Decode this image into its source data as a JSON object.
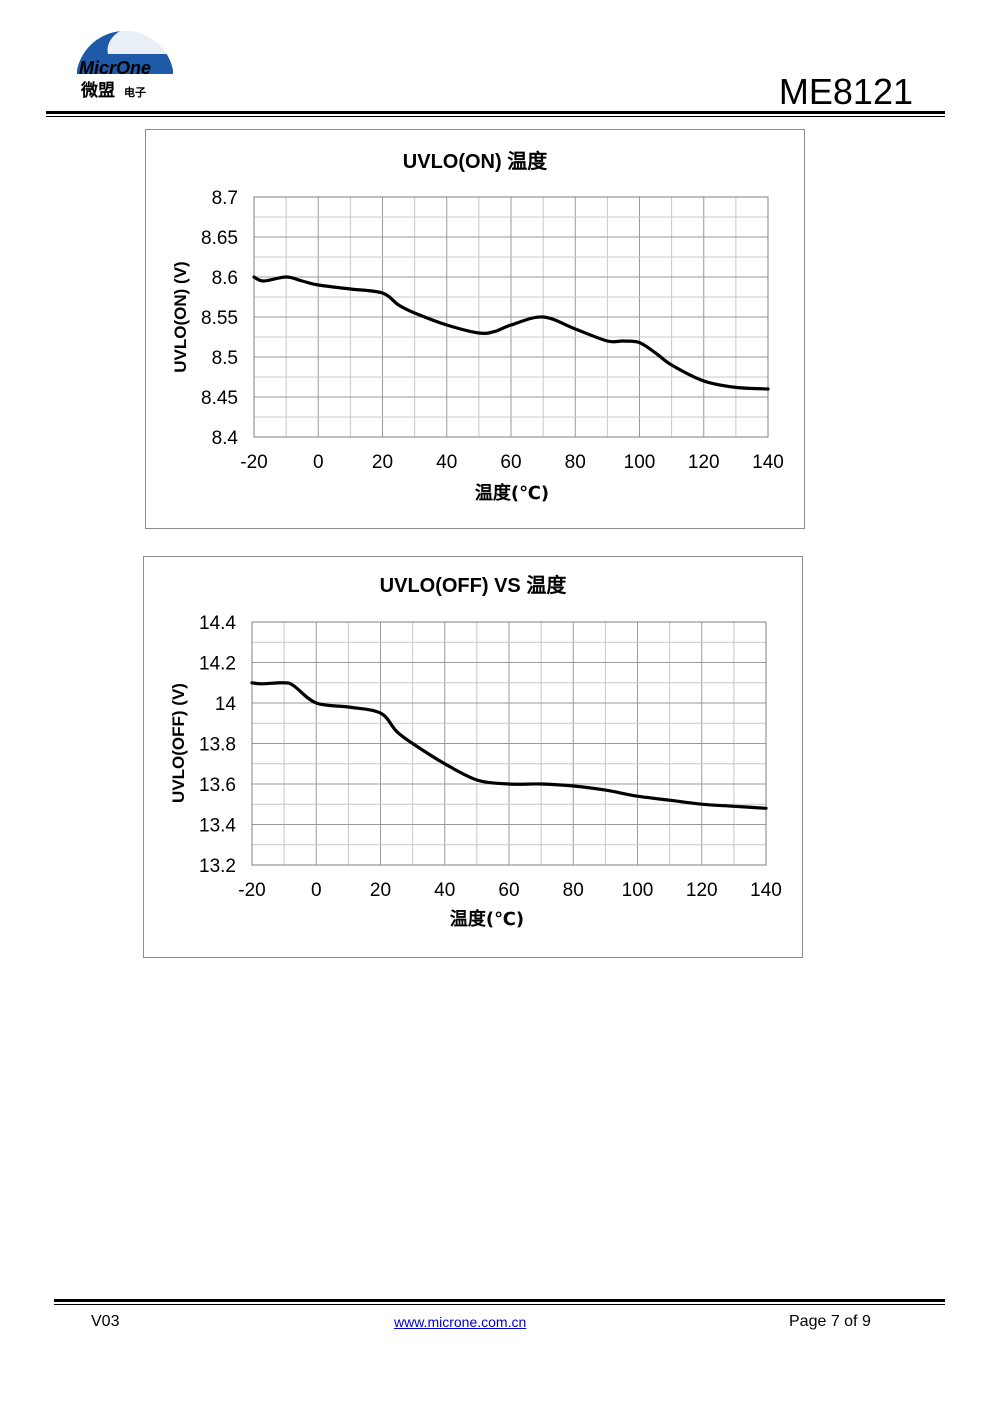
{
  "header": {
    "logo_text": "MicrOne",
    "logo_cn": "微盟",
    "logo_cn_small": "电子",
    "doc_id": "ME8121",
    "colors": {
      "logo_blue": "#1e5aa8"
    }
  },
  "chart_data": [
    {
      "type": "line",
      "title": "UVLO(ON) 温度",
      "xlabel": "温度(℃)",
      "ylabel": "UVLO(ON) (V)",
      "xlim": [
        -20,
        140
      ],
      "ylim": [
        8.4,
        8.7
      ],
      "x_ticks": [
        "-20",
        "0",
        "20",
        "40",
        "60",
        "80",
        "100",
        "120",
        "140"
      ],
      "y_ticks": [
        "8.7",
        "8.65",
        "8.6",
        "8.55",
        "8.5",
        "8.45",
        "8.4"
      ],
      "grid": true,
      "legend": "none",
      "series": [
        {
          "x": [
            -20,
            -17,
            -10,
            -5,
            0,
            10,
            20,
            25,
            30,
            40,
            50,
            55,
            60,
            70,
            80,
            90,
            95,
            100,
            105,
            110,
            120,
            130,
            140
          ],
          "y": [
            8.6,
            8.595,
            8.6,
            8.595,
            8.59,
            8.585,
            8.58,
            8.565,
            8.555,
            8.54,
            8.53,
            8.532,
            8.54,
            8.55,
            8.535,
            8.52,
            8.52,
            8.518,
            8.505,
            8.49,
            8.47,
            8.462,
            8.46
          ]
        }
      ]
    },
    {
      "type": "line",
      "title": "UVLO(OFF) VS 温度",
      "xlabel": "温度(℃)",
      "ylabel": "UVLO(OFF) (V)",
      "xlim": [
        -20,
        140
      ],
      "ylim": [
        13.2,
        14.4
      ],
      "x_ticks": [
        "-20",
        "0",
        "20",
        "40",
        "60",
        "80",
        "100",
        "120",
        "140"
      ],
      "y_ticks": [
        "14.4",
        "14.2",
        "14",
        "13.8",
        "13.6",
        "13.4",
        "13.2"
      ],
      "grid": true,
      "legend": "none",
      "series": [
        {
          "x": [
            -20,
            -17,
            -10,
            -7,
            0,
            10,
            20,
            25,
            30,
            40,
            50,
            60,
            70,
            80,
            90,
            100,
            110,
            120,
            130,
            140
          ],
          "y": [
            14.1,
            14.095,
            14.1,
            14.085,
            14.0,
            13.98,
            13.95,
            13.86,
            13.8,
            13.7,
            13.62,
            13.6,
            13.6,
            13.59,
            13.57,
            13.54,
            13.52,
            13.5,
            13.49,
            13.48
          ]
        }
      ]
    }
  ],
  "footer": {
    "version": "V03",
    "url": "www.microne.com.cn",
    "page": "Page 7 of 9"
  }
}
